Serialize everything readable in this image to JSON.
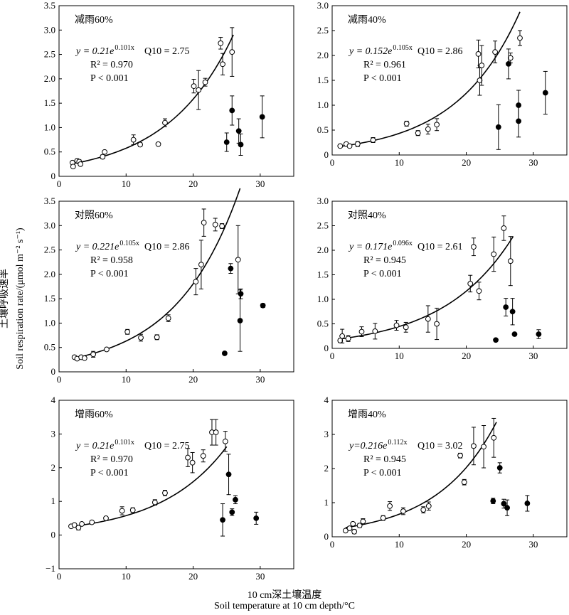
{
  "y_title_cn": "土壤呼吸速率",
  "y_title_en": "Soil respiration rate/(μmol m⁻² s⁻¹)",
  "x_title_cn": "10 cm深土壤温度",
  "x_title_en": "Soil temperature at 10 cm depth/°C",
  "chart_data": [
    {
      "type": "scatter",
      "title": "减雨60%",
      "xlim": [
        0,
        35
      ],
      "ylim": [
        0,
        3.5
      ],
      "xticks": [
        0,
        10,
        20,
        30
      ],
      "yticks": [
        0,
        0.5,
        1.0,
        1.5,
        2.0,
        2.5,
        3.0,
        3.5
      ],
      "ytick_labels": [
        "0",
        "0.5",
        "1.0",
        "1.5",
        "2.0",
        "2.5",
        "3.0",
        "3.5"
      ],
      "equation": {
        "lead": "y = 0.21e",
        "exp": "0.101x",
        "q10": "Q10 = 2.75"
      },
      "r2": "R² = 0.970",
      "p": "P < 0.001",
      "fit": {
        "a": 0.21,
        "b": 0.101,
        "x_range": [
          2,
          26
        ]
      },
      "series": [
        {
          "marker": "open",
          "points": [
            {
              "x": 2,
              "y": 0.28,
              "err": 0.02
            },
            {
              "x": 2.1,
              "y": 0.2,
              "err": 0.03
            },
            {
              "x": 2.7,
              "y": 0.32,
              "err": 0.03
            },
            {
              "x": 3,
              "y": 0.3,
              "err": 0.04
            },
            {
              "x": 3.2,
              "y": 0.25,
              "err": 0.03
            },
            {
              "x": 6.5,
              "y": 0.4,
              "err": 0.04
            },
            {
              "x": 6.8,
              "y": 0.5,
              "err": 0.03
            },
            {
              "x": 11.1,
              "y": 0.75,
              "err": 0.1
            },
            {
              "x": 12.1,
              "y": 0.65,
              "err": 0.04
            },
            {
              "x": 14.8,
              "y": 0.66,
              "err": 0.02
            },
            {
              "x": 15.8,
              "y": 1.1,
              "err": 0.08
            },
            {
              "x": 20.1,
              "y": 1.85,
              "err": 0.14
            },
            {
              "x": 20.8,
              "y": 1.77,
              "err": 0.4
            },
            {
              "x": 21.8,
              "y": 1.93,
              "err": 0.08
            },
            {
              "x": 24.1,
              "y": 2.73,
              "err": 0.12
            },
            {
              "x": 24.4,
              "y": 2.3,
              "err": 0.22
            },
            {
              "x": 25.8,
              "y": 2.55,
              "err": 0.5
            }
          ]
        },
        {
          "marker": "filled",
          "points": [
            {
              "x": 25,
              "y": 0.7,
              "err": 0.19
            },
            {
              "x": 25.8,
              "y": 1.35,
              "err": 0.3
            },
            {
              "x": 26.8,
              "y": 0.93,
              "err": 0.25
            },
            {
              "x": 27.1,
              "y": 0.65,
              "err": 0.22
            },
            {
              "x": 30.3,
              "y": 1.22,
              "err": 0.43
            }
          ]
        }
      ]
    },
    {
      "type": "scatter",
      "title": "减雨40%",
      "xlim": [
        0,
        35
      ],
      "ylim": [
        0,
        3.0
      ],
      "xticks": [
        0,
        10,
        20,
        30
      ],
      "yticks": [
        0,
        0.5,
        1.0,
        1.5,
        2.0,
        2.5,
        3.0
      ],
      "ytick_labels": [
        "0",
        "0.5",
        "1.0",
        "1.5",
        "2.0",
        "2.5",
        "3.0"
      ],
      "equation": {
        "lead": "y = 0.152e",
        "exp": "0.105x",
        "q10": "Q10 = 2.86"
      },
      "r2": "R² = 0.961",
      "p": "P < 0.001",
      "fit": {
        "a": 0.152,
        "b": 0.105,
        "x_range": [
          1.5,
          28
        ]
      },
      "series": [
        {
          "marker": "open",
          "points": [
            {
              "x": 1.2,
              "y": 0.18,
              "err": 0.03
            },
            {
              "x": 2.1,
              "y": 0.22,
              "err": 0.03
            },
            {
              "x": 2.6,
              "y": 0.18,
              "err": 0.02
            },
            {
              "x": 3.8,
              "y": 0.22,
              "err": 0.05
            },
            {
              "x": 6.1,
              "y": 0.3,
              "err": 0.05
            },
            {
              "x": 11.1,
              "y": 0.63,
              "err": 0.05
            },
            {
              "x": 12.8,
              "y": 0.44,
              "err": 0.05
            },
            {
              "x": 14.3,
              "y": 0.52,
              "err": 0.1
            },
            {
              "x": 15.6,
              "y": 0.61,
              "err": 0.12
            },
            {
              "x": 21.8,
              "y": 2.03,
              "err": 0.28
            },
            {
              "x": 22,
              "y": 1.5,
              "err": 0.3
            },
            {
              "x": 22.3,
              "y": 1.8,
              "err": 0.4
            },
            {
              "x": 24.3,
              "y": 2.07,
              "err": 0.22
            },
            {
              "x": 26.6,
              "y": 1.95,
              "err": 0.1
            },
            {
              "x": 28,
              "y": 2.35,
              "err": 0.15
            }
          ]
        },
        {
          "marker": "filled",
          "points": [
            {
              "x": 24.8,
              "y": 0.56,
              "err": 0.45
            },
            {
              "x": 26.3,
              "y": 1.83,
              "err": 0.3
            },
            {
              "x": 27.8,
              "y": 1.0,
              "err": 0.3
            },
            {
              "x": 27.8,
              "y": 0.68,
              "err": 0.32
            },
            {
              "x": 31.8,
              "y": 1.25,
              "err": 0.43
            }
          ]
        }
      ]
    },
    {
      "type": "scatter",
      "title": "对照60%",
      "xlim": [
        0,
        35
      ],
      "ylim": [
        0,
        3.5
      ],
      "xticks": [
        0,
        10,
        20,
        30
      ],
      "yticks": [
        0,
        0.5,
        1.0,
        1.5,
        2.0,
        2.5,
        3.0,
        3.5
      ],
      "ytick_labels": [
        "0",
        "0.5",
        "1.0",
        "1.5",
        "2.0",
        "2.5",
        "3.0",
        "3.5"
      ],
      "equation": {
        "lead": "y = 0.221e",
        "exp": "0.105x",
        "q10": "Q10 = 2.86"
      },
      "r2": "R² = 0.958",
      "p": "P < 0.001",
      "fit": {
        "a": 0.221,
        "b": 0.105,
        "x_range": [
          2.5,
          27
        ]
      },
      "series": [
        {
          "marker": "open",
          "points": [
            {
              "x": 2.3,
              "y": 0.3,
              "err": 0.03
            },
            {
              "x": 2.7,
              "y": 0.27,
              "err": 0.03
            },
            {
              "x": 3.3,
              "y": 0.3,
              "err": 0.02
            },
            {
              "x": 3.8,
              "y": 0.28,
              "err": 0.02
            },
            {
              "x": 5.1,
              "y": 0.36,
              "err": 0.06
            },
            {
              "x": 7.1,
              "y": 0.46,
              "err": 0.03
            },
            {
              "x": 10.2,
              "y": 0.82,
              "err": 0.05
            },
            {
              "x": 12.2,
              "y": 0.7,
              "err": 0.07
            },
            {
              "x": 14.6,
              "y": 0.71,
              "err": 0.05
            },
            {
              "x": 16.3,
              "y": 1.1,
              "err": 0.07
            },
            {
              "x": 20.4,
              "y": 1.85,
              "err": 0.27
            },
            {
              "x": 21.2,
              "y": 2.2,
              "err": 0.5
            },
            {
              "x": 21.6,
              "y": 3.06,
              "err": 0.28
            },
            {
              "x": 23.3,
              "y": 3.02,
              "err": 0.13
            },
            {
              "x": 24.3,
              "y": 2.99,
              "err": 0.05
            },
            {
              "x": 26.7,
              "y": 2.3,
              "err": 0.7
            }
          ]
        },
        {
          "marker": "filled",
          "points": [
            {
              "x": 24.7,
              "y": 0.38,
              "err": 0.02
            },
            {
              "x": 25.6,
              "y": 2.12,
              "err": 0.1
            },
            {
              "x": 27.1,
              "y": 1.6,
              "err": 0.1
            },
            {
              "x": 27,
              "y": 1.05,
              "err": 0.63
            },
            {
              "x": 30.4,
              "y": 1.36,
              "err": 0.04
            }
          ]
        }
      ]
    },
    {
      "type": "scatter",
      "title": "对照40%",
      "xlim": [
        0,
        35
      ],
      "ylim": [
        0,
        3.0
      ],
      "xticks": [
        0,
        10,
        20,
        30
      ],
      "yticks": [
        0,
        0.5,
        1.0,
        1.5,
        2.0,
        2.5,
        3.0
      ],
      "ytick_labels": [
        "0",
        "0.5",
        "1.0",
        "1.5",
        "2.0",
        "2.5",
        "3.0"
      ],
      "equation": {
        "lead": "y = 0.171e",
        "exp": "0.096x",
        "q10": "Q10 = 2.61"
      },
      "r2": "R² = 0.945",
      "p": "P < 0.001",
      "fit": {
        "a": 0.171,
        "b": 0.096,
        "x_range": [
          1.2,
          27
        ]
      },
      "series": [
        {
          "marker": "open",
          "points": [
            {
              "x": 1.2,
              "y": 0.16,
              "err": 0.04
            },
            {
              "x": 1.5,
              "y": 0.25,
              "err": 0.14
            },
            {
              "x": 2.4,
              "y": 0.2,
              "err": 0.06
            },
            {
              "x": 4.4,
              "y": 0.34,
              "err": 0.1
            },
            {
              "x": 6.4,
              "y": 0.35,
              "err": 0.16
            },
            {
              "x": 9.6,
              "y": 0.47,
              "err": 0.1
            },
            {
              "x": 11,
              "y": 0.43,
              "err": 0.1
            },
            {
              "x": 14.3,
              "y": 0.6,
              "err": 0.27
            },
            {
              "x": 15.6,
              "y": 0.5,
              "err": 0.32
            },
            {
              "x": 20.6,
              "y": 1.32,
              "err": 0.17
            },
            {
              "x": 21.1,
              "y": 2.07,
              "err": 0.18
            },
            {
              "x": 21.9,
              "y": 1.17,
              "err": 0.18
            },
            {
              "x": 24.1,
              "y": 1.92,
              "err": 0.35
            },
            {
              "x": 25.6,
              "y": 2.45,
              "err": 0.25
            },
            {
              "x": 26.6,
              "y": 1.78,
              "err": 0.5
            }
          ]
        },
        {
          "marker": "filled",
          "points": [
            {
              "x": 24.4,
              "y": 0.17,
              "err": 0.03
            },
            {
              "x": 25.9,
              "y": 0.84,
              "err": 0.18
            },
            {
              "x": 26.9,
              "y": 0.75,
              "err": 0.27
            },
            {
              "x": 27.2,
              "y": 0.29,
              "err": 0.02
            },
            {
              "x": 30.8,
              "y": 0.29,
              "err": 0.09
            }
          ]
        }
      ]
    },
    {
      "type": "scatter",
      "title": "增雨60%",
      "xlim": [
        0,
        35
      ],
      "ylim": [
        -1,
        4
      ],
      "xticks": [
        0,
        10,
        20,
        30
      ],
      "yticks": [
        -1,
        0,
        1,
        2,
        3,
        4
      ],
      "ytick_labels": [
        "−1",
        "0",
        "1",
        "2",
        "3",
        "4"
      ],
      "equation": {
        "lead": "y = 0.21e",
        "exp": "0.101x",
        "q10": "Q10 = 2.75"
      },
      "r2": "R² = 0.970",
      "p": "P < 0.001",
      "fit": {
        "a": 0.21,
        "b": 0.101,
        "x_range": [
          1.8,
          25
        ]
      },
      "series": [
        {
          "marker": "open",
          "points": [
            {
              "x": 1.8,
              "y": 0.26,
              "err": 0.03
            },
            {
              "x": 2.3,
              "y": 0.3,
              "err": 0.03
            },
            {
              "x": 2.9,
              "y": 0.22,
              "err": 0.07
            },
            {
              "x": 3.4,
              "y": 0.33,
              "err": 0.04
            },
            {
              "x": 4.9,
              "y": 0.38,
              "err": 0.04
            },
            {
              "x": 7,
              "y": 0.5,
              "err": 0.04
            },
            {
              "x": 9.4,
              "y": 0.72,
              "err": 0.12
            },
            {
              "x": 11,
              "y": 0.74,
              "err": 0.07
            },
            {
              "x": 14.3,
              "y": 0.97,
              "err": 0.08
            },
            {
              "x": 15.8,
              "y": 1.25,
              "err": 0.08
            },
            {
              "x": 19.2,
              "y": 2.3,
              "err": 0.27
            },
            {
              "x": 19.9,
              "y": 2.15,
              "err": 0.3
            },
            {
              "x": 21.5,
              "y": 2.35,
              "err": 0.18
            },
            {
              "x": 22.8,
              "y": 3.05,
              "err": 0.38
            },
            {
              "x": 23.4,
              "y": 3.05,
              "err": 0.38
            },
            {
              "x": 24.8,
              "y": 2.78,
              "err": 0.3
            }
          ]
        },
        {
          "marker": "filled",
          "points": [
            {
              "x": 24.4,
              "y": 0.45,
              "err": 0.48
            },
            {
              "x": 25.3,
              "y": 1.8,
              "err": 0.6
            },
            {
              "x": 25.8,
              "y": 0.68,
              "err": 0.1
            },
            {
              "x": 26.3,
              "y": 1.05,
              "err": 0.12
            },
            {
              "x": 29.4,
              "y": 0.5,
              "err": 0.18
            }
          ]
        }
      ]
    },
    {
      "type": "scatter",
      "title": "增雨40%",
      "xlim": [
        0,
        35
      ],
      "ylim": [
        0,
        4
      ],
      "xticks": [
        0,
        10,
        20,
        30
      ],
      "yticks": [
        0,
        1,
        2,
        3,
        4
      ],
      "ytick_labels": [
        "0",
        "1",
        "2",
        "3",
        "4"
      ],
      "equation": {
        "lead": "y=0.216e",
        "exp": "0.112x",
        "q10": "Q10 = 3.02"
      },
      "r2": "R² = 0.945",
      "p": "P < 0.001",
      "fit": {
        "a": 0.216,
        "b": 0.112,
        "x_range": [
          2,
          24.5
        ]
      },
      "series": [
        {
          "marker": "open",
          "points": [
            {
              "x": 2,
              "y": 0.18,
              "err": 0.03
            },
            {
              "x": 2.6,
              "y": 0.25,
              "err": 0.05
            },
            {
              "x": 3.1,
              "y": 0.38,
              "err": 0.04
            },
            {
              "x": 3.3,
              "y": 0.15,
              "err": 0.06
            },
            {
              "x": 4.1,
              "y": 0.33,
              "err": 0.06
            },
            {
              "x": 4.6,
              "y": 0.45,
              "err": 0.08
            },
            {
              "x": 7.6,
              "y": 0.55,
              "err": 0.07
            },
            {
              "x": 8.6,
              "y": 0.9,
              "err": 0.13
            },
            {
              "x": 10.6,
              "y": 0.75,
              "err": 0.1
            },
            {
              "x": 13.6,
              "y": 0.79,
              "err": 0.09
            },
            {
              "x": 14.4,
              "y": 0.9,
              "err": 0.12
            },
            {
              "x": 19.1,
              "y": 2.38,
              "err": 0.07
            },
            {
              "x": 19.7,
              "y": 1.6,
              "err": 0.08
            },
            {
              "x": 21.1,
              "y": 2.66,
              "err": 0.55
            },
            {
              "x": 22.6,
              "y": 2.64,
              "err": 0.62
            },
            {
              "x": 24.1,
              "y": 2.9,
              "err": 0.57
            }
          ]
        },
        {
          "marker": "filled",
          "points": [
            {
              "x": 24,
              "y": 1.05,
              "err": 0.08
            },
            {
              "x": 25,
              "y": 2.02,
              "err": 0.15
            },
            {
              "x": 25.6,
              "y": 0.97,
              "err": 0.13
            },
            {
              "x": 26.1,
              "y": 0.85,
              "err": 0.23
            },
            {
              "x": 29.1,
              "y": 0.98,
              "err": 0.23
            }
          ]
        }
      ]
    }
  ]
}
